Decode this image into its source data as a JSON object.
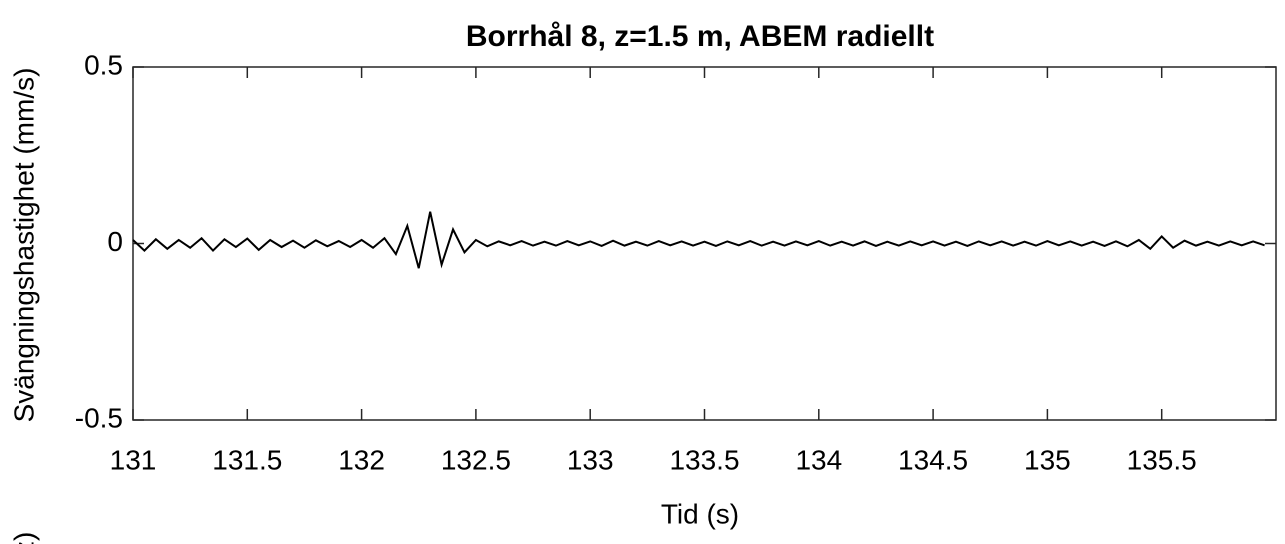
{
  "chart_data": {
    "type": "line",
    "title": "Borrhål 8, z=1.5 m, ABEM radiellt",
    "xlabel": "Tid (s)",
    "ylabel": "Svängningshastighet (mm/s)",
    "annotation": "(z)",
    "color": "#000000",
    "xlim": [
      131,
      136
    ],
    "ylim": [
      -0.5,
      0.5
    ],
    "xticks": [
      131,
      131.5,
      132,
      132.5,
      133,
      133.5,
      134,
      134.5,
      135,
      135.5
    ],
    "yticks": [
      -0.5,
      0,
      0.5
    ],
    "x": [
      131,
      131.05,
      131.1,
      131.15,
      131.2,
      131.25,
      131.3,
      131.35,
      131.4,
      131.45,
      131.5,
      131.55,
      131.6,
      131.65,
      131.7,
      131.75,
      131.8,
      131.85,
      131.9,
      131.95,
      132,
      132.05,
      132.1,
      132.15,
      132.2,
      132.25,
      132.3,
      132.35,
      132.4,
      132.45,
      132.5,
      132.55,
      132.6,
      132.65,
      132.7,
      132.75,
      132.8,
      132.85,
      132.9,
      132.95,
      133,
      133.05,
      133.1,
      133.15,
      133.2,
      133.25,
      133.3,
      133.35,
      133.4,
      133.45,
      133.5,
      133.55,
      133.6,
      133.65,
      133.7,
      133.75,
      133.8,
      133.85,
      133.9,
      133.95,
      134,
      134.05,
      134.1,
      134.15,
      134.2,
      134.25,
      134.3,
      134.35,
      134.4,
      134.45,
      134.5,
      134.55,
      134.6,
      134.65,
      134.7,
      134.75,
      134.8,
      134.85,
      134.9,
      134.95,
      135,
      135.05,
      135.1,
      135.15,
      135.2,
      135.25,
      135.3,
      135.35,
      135.4,
      135.45,
      135.5,
      135.55,
      135.6,
      135.65,
      135.7,
      135.75,
      135.8,
      135.85,
      135.9,
      135.95
    ],
    "values": [
      0.01,
      -0.02,
      0.012,
      -0.015,
      0.01,
      -0.012,
      0.015,
      -0.02,
      0.012,
      -0.01,
      0.014,
      -0.018,
      0.01,
      -0.01,
      0.008,
      -0.012,
      0.009,
      -0.008,
      0.007,
      -0.01,
      0.01,
      -0.012,
      0.015,
      -0.03,
      0.05,
      -0.07,
      0.09,
      -0.06,
      0.04,
      -0.025,
      0.01,
      -0.008,
      0.006,
      -0.005,
      0.007,
      -0.006,
      0.005,
      -0.006,
      0.007,
      -0.005,
      0.006,
      -0.007,
      0.008,
      -0.006,
      0.005,
      -0.006,
      0.007,
      -0.005,
      0.006,
      -0.006,
      0.005,
      -0.007,
      0.006,
      -0.005,
      0.007,
      -0.006,
      0.005,
      -0.006,
      0.006,
      -0.005,
      0.007,
      -0.006,
      0.005,
      -0.006,
      0.006,
      -0.007,
      0.005,
      -0.006,
      0.006,
      -0.005,
      0.006,
      -0.006,
      0.005,
      -0.007,
      0.006,
      -0.005,
      0.006,
      -0.006,
      0.005,
      -0.006,
      0.007,
      -0.005,
      0.006,
      -0.006,
      0.005,
      -0.007,
      0.006,
      -0.008,
      0.01,
      -0.015,
      0.02,
      -0.012,
      0.008,
      -0.006,
      0.005,
      -0.006,
      0.006,
      -0.005,
      0.006,
      -0.005
    ]
  }
}
